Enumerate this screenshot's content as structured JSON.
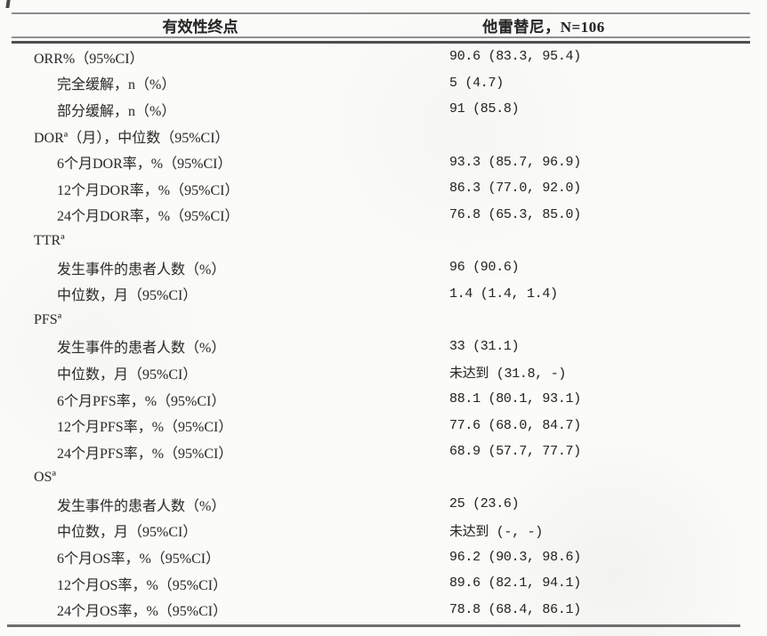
{
  "table": {
    "header": {
      "endpoint_label": "有效性终点",
      "group_label": "他雷替尼，N=106"
    },
    "rows": [
      {
        "label": "ORR%（95%CI）",
        "value": "90.6 (83.3, 95.4)"
      },
      {
        "label": "完全缓解，n（%）",
        "value": "5 (4.7)"
      },
      {
        "label": "部分缓解，n（%）",
        "value": "91 (85.8)"
      },
      {
        "label": "DORª（月），中位数（95%CI）",
        "value": ""
      },
      {
        "label": "6个月DOR率，%（95%CI）",
        "value": "93.3 (85.7, 96.9)"
      },
      {
        "label": "12个月DOR率，%（95%CI）",
        "value": "86.3 (77.0, 92.0)"
      },
      {
        "label": "24个月DOR率，%（95%CI）",
        "value": "76.8 (65.3, 85.0)"
      },
      {
        "label": "TTRª",
        "value": ""
      },
      {
        "label": "发生事件的患者人数（%）",
        "value": "96 (90.6)"
      },
      {
        "label": "中位数，月（95%CI）",
        "value": "1.4 (1.4, 1.4)"
      },
      {
        "label": "PFSª",
        "value": ""
      },
      {
        "label": "发生事件的患者人数（%）",
        "value": "33 (31.1)"
      },
      {
        "label": "中位数，月（95%CI）",
        "value": "未达到 (31.8, -)"
      },
      {
        "label": "6个月PFS率，%（95%CI）",
        "value": "88.1 (80.1, 93.1)"
      },
      {
        "label": "12个月PFS率，%（95%CI）",
        "value": "77.6 (68.0, 84.7)"
      },
      {
        "label": "24个月PFS率，%（95%CI）",
        "value": "68.9 (57.7, 77.7)"
      },
      {
        "label": "OSª",
        "value": ""
      },
      {
        "label": "发生事件的患者人数（%）",
        "value": "25 (23.6)"
      },
      {
        "label": "中位数，月（95%CI）",
        "value": "未达到 (-, -)"
      },
      {
        "label": "6个月OS率，%（95%CI）",
        "value": "96.2 (90.3, 98.6)"
      },
      {
        "label": "12个月OS率，%（95%CI）",
        "value": "89.6 (82.1, 94.1)"
      },
      {
        "label": "24个月OS率，%（95%CI）",
        "value": "78.8 (68.4, 86.1)"
      }
    ]
  }
}
